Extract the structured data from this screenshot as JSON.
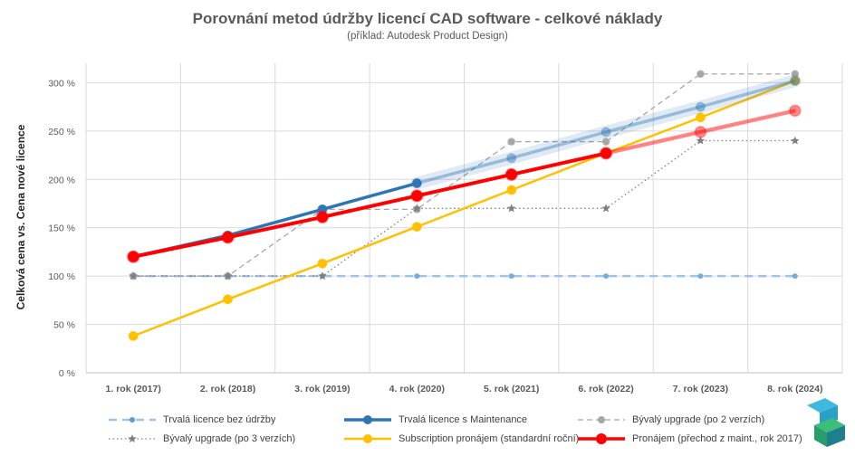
{
  "chart_data": {
    "type": "line",
    "title": "Porovnání metod údržby licencí CAD software - celkové náklady",
    "subtitle": "(příklad: Autodesk Product Design)",
    "ylabel": "Celková cena vs. Cena nové licence",
    "xlabel": "",
    "categories": [
      "1. rok (2017)",
      "2. rok (2018)",
      "3. rok (2019)",
      "4. rok (2020)",
      "5. rok (2021)",
      "6. rok (2022)",
      "7. rok (2023)",
      "8. rok (2024)"
    ],
    "ylim": [
      0,
      320
    ],
    "yticks": [
      0,
      50,
      100,
      150,
      200,
      250,
      300
    ],
    "ytick_labels": [
      "0 %",
      "50 %",
      "100 %",
      "150 %",
      "200 %",
      "250 %",
      "300 %"
    ],
    "grid": true,
    "legend_position": "bottom",
    "series": [
      {
        "name": "Trvalá licence bez údržby",
        "values": [
          100,
          100,
          100,
          100,
          100,
          100,
          100,
          100
        ],
        "color": "#9dc3e6"
      },
      {
        "name": "Trvalá licence s Maintenance",
        "values": [
          120,
          142,
          169,
          196,
          222,
          249,
          275,
          302
        ],
        "color": "#2e75b6"
      },
      {
        "name": "Bývalý upgrade (po 2 verzích)",
        "values": [
          100,
          100,
          169,
          169,
          239,
          239,
          309,
          309
        ],
        "color": "#a6a6a6"
      },
      {
        "name": "Bývalý upgrade (po 3 verzích)",
        "values": [
          100,
          100,
          100,
          170,
          170,
          170,
          240,
          240
        ],
        "color": "#808080"
      },
      {
        "name": "Subscription pronájem (standardní roční)",
        "values": [
          38,
          76,
          113,
          151,
          189,
          227,
          264,
          302
        ],
        "color": "#ffc000"
      },
      {
        "name": "Pronájem (přechod z maint., rok 2017)",
        "values": [
          120,
          140,
          161,
          183,
          205,
          227,
          249,
          271
        ],
        "color": "#ff0000"
      }
    ]
  }
}
